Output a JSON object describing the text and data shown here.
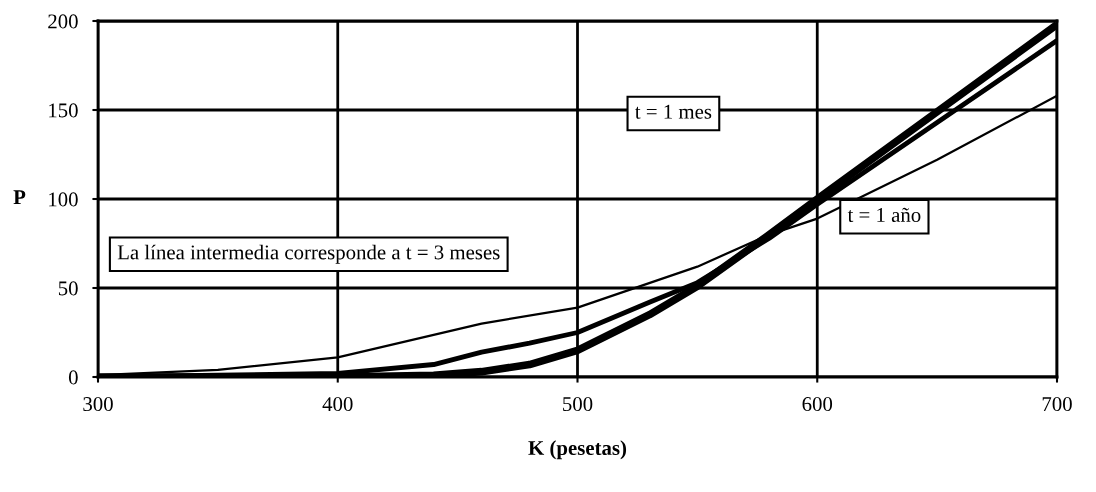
{
  "chart_data": {
    "type": "line",
    "xlabel": "K (pesetas)",
    "ylabel": "P",
    "xlim": [
      300,
      700
    ],
    "ylim": [
      0,
      200
    ],
    "xticks": [
      300,
      400,
      500,
      600,
      700
    ],
    "yticks": [
      0,
      50,
      100,
      150,
      200
    ],
    "grid": true,
    "legend": false,
    "line_style": "solid",
    "marker": "none",
    "series": [
      {
        "name": "t = 1 mes",
        "color": "#000000",
        "x": [
          300,
          400,
          440,
          460,
          480,
          500,
          530,
          550,
          580,
          600,
          650,
          700
        ],
        "values": [
          0,
          0,
          1,
          3,
          7,
          15,
          35,
          51,
          80,
          100,
          149,
          198
        ]
      },
      {
        "color": "#000000",
        "x": [
          300,
          350,
          400,
          440,
          460,
          480,
          500,
          530,
          550,
          580,
          600,
          650,
          700
        ],
        "values": [
          0,
          1,
          2,
          7,
          14,
          19,
          25,
          42,
          53,
          78,
          97,
          143,
          189
        ]
      },
      {
        "name": "t = 1 año",
        "color": "#000000",
        "x": [
          300,
          350,
          400,
          460,
          500,
          550,
          580,
          600,
          650,
          700
        ],
        "values": [
          1,
          4,
          11,
          30,
          39,
          62,
          80,
          89,
          122,
          158
        ]
      }
    ],
    "annotations": [
      "La línea intermedia corresponde a t = 3 meses"
    ]
  }
}
